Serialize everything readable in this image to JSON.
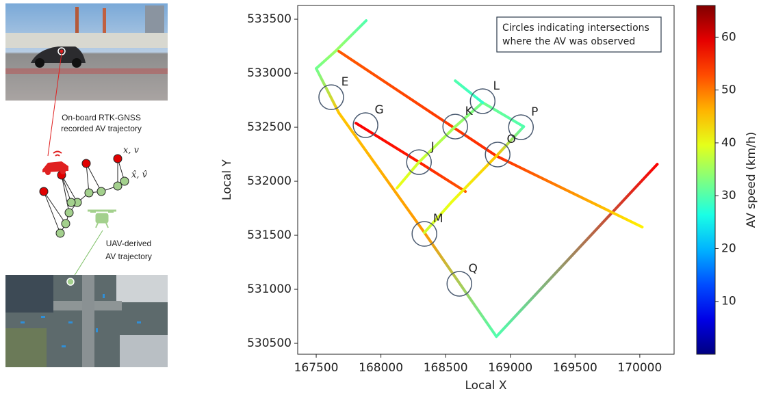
{
  "left_panel": {
    "onboard_lines": [
      "On-board RTK-GNSS",
      "recorded AV trajectory"
    ],
    "state_true": "x, v",
    "state_est": "x̂, v̂",
    "uav_lines": [
      "UAV-derived",
      "AV trajectory"
    ]
  },
  "chart_data": {
    "type": "line",
    "xlabel": "Local X",
    "ylabel": "Local Y",
    "xlim": [
      167357,
      170265
    ],
    "ylim": [
      530399,
      533627
    ],
    "xticks": [
      167500,
      168000,
      168500,
      169000,
      169500,
      170000
    ],
    "yticks": [
      530500,
      531000,
      531500,
      532000,
      532500,
      533000,
      533500
    ],
    "colorbar": {
      "label": "AV speed (km/h)",
      "lim": [
        0,
        66
      ],
      "ticks": [
        10,
        20,
        30,
        40,
        50,
        60
      ],
      "colormap": "jet"
    },
    "annotation": [
      "Circles indicating intersections",
      "where the AV was observed"
    ],
    "series": [
      {
        "x": [
          167886,
          167648,
          167500,
          167675,
          168336,
          168892,
          170135
        ],
        "y": [
          533487,
          533203,
          533044,
          532633,
          531525,
          530563,
          532158
        ],
        "speed": [
          30,
          35,
          32,
          45,
          48,
          30,
          58
        ]
      },
      {
        "x": [
          167675,
          168892,
          170019
        ],
        "y": [
          533203,
          532234,
          531576
        ],
        "speed": [
          52,
          55,
          42
        ]
      },
      {
        "x": [
          167807,
          168294,
          168653
        ],
        "y": [
          532538,
          532177,
          531905
        ],
        "speed": [
          58,
          56,
          52
        ]
      },
      {
        "x": [
          168124,
          168294,
          168574,
          168786,
          169103,
          168892,
          168548,
          168336
        ],
        "y": [
          531937,
          532177,
          532506,
          532728,
          532506,
          532234,
          531810,
          531525
        ],
        "speed": [
          40,
          38,
          35,
          32,
          30,
          45,
          40,
          38
        ]
      },
      {
        "x": [
          168574,
          168786
        ],
        "y": [
          532930,
          532728
        ],
        "speed": [
          30,
          28
        ]
      }
    ],
    "intersections": [
      {
        "label": "E",
        "x": 167616,
        "y": 532778
      },
      {
        "label": "G",
        "x": 167881,
        "y": 532519
      },
      {
        "label": "K",
        "x": 168574,
        "y": 532506
      },
      {
        "label": "L",
        "x": 168786,
        "y": 532741
      },
      {
        "label": "P",
        "x": 169082,
        "y": 532500
      },
      {
        "label": "J",
        "x": 168294,
        "y": 532177
      },
      {
        "label": "O",
        "x": 168902,
        "y": 532247
      },
      {
        "label": "M",
        "x": 168336,
        "y": 531513
      },
      {
        "label": "Q",
        "x": 168606,
        "y": 531051
      }
    ]
  }
}
